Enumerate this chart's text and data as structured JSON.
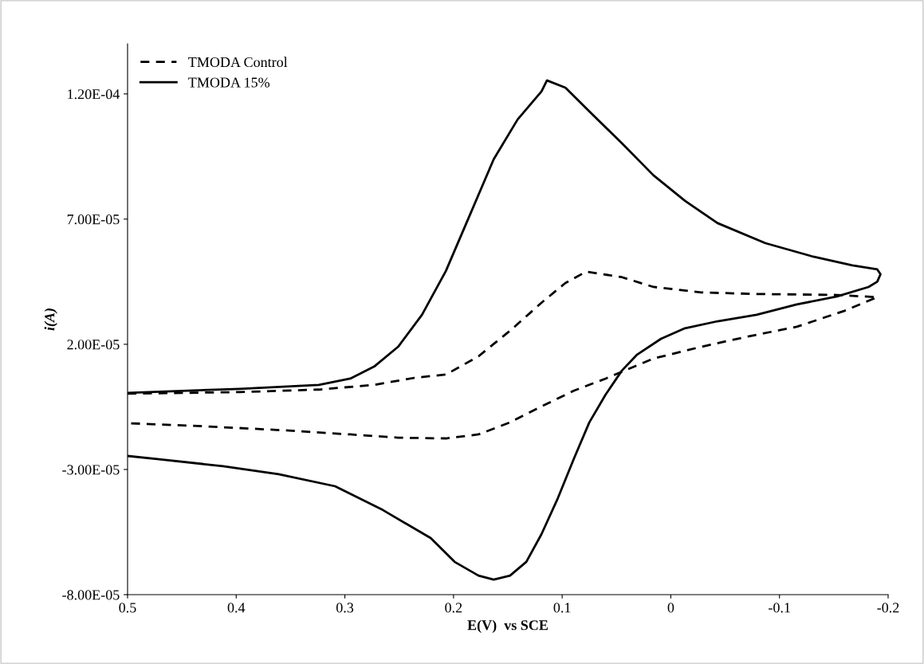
{
  "chart_data": {
    "type": "line",
    "xlabel": "E(V)  vs SCE",
    "ylabel": "i(A)",
    "xlim": [
      0.5,
      -0.2
    ],
    "xticks": [
      0.5,
      0.4,
      0.3,
      0.2,
      0.1,
      0,
      -0.1,
      -0.2
    ],
    "ylim": [
      -8e-05,
      0.00014
    ],
    "yticks": [
      {
        "value": -8e-05,
        "label": "-8.00E-05"
      },
      {
        "value": -3e-05,
        "label": "-3.00E-05"
      },
      {
        "value": 2e-05,
        "label": "2.00E-05"
      },
      {
        "value": 7e-05,
        "label": "7.00E-05"
      },
      {
        "value": 0.00012,
        "label": "1.20E-04"
      }
    ],
    "grid": false,
    "legend": "top left",
    "marker": "none",
    "series": [
      {
        "name": "TMODA Control",
        "color": "#000000",
        "line_style": "dashed",
        "x": [
          0.5,
          0.397,
          0.324,
          0.273,
          0.236,
          0.207,
          0.177,
          0.148,
          0.119,
          0.097,
          0.078,
          0.045,
          0.016,
          -0.028,
          -0.079,
          -0.153,
          -0.19,
          -0.16,
          -0.116,
          -0.072,
          -0.028,
          0.016,
          0.06,
          0.089,
          0.119,
          0.148,
          0.177,
          0.207,
          0.251,
          0.295,
          0.354,
          0.427,
          0.5
        ],
        "values": [
          3e-07,
          9e-07,
          1.9e-06,
          3.8e-06,
          6.6e-06,
          7.9e-06,
          1.52e-05,
          2.54e-05,
          3.66e-05,
          4.45e-05,
          4.9e-05,
          4.68e-05,
          4.29e-05,
          4.07e-05,
          4.01e-05,
          3.97e-05,
          3.88e-05,
          3.34e-05,
          2.7e-05,
          2.32e-05,
          1.9e-05,
          1.43e-05,
          6.3e-06,
          1.5e-06,
          -4.8e-06,
          -1.12e-05,
          -1.6e-05,
          -1.76e-05,
          -1.73e-05,
          -1.6e-05,
          -1.44e-05,
          -1.28e-05,
          -1.15e-05
        ]
      },
      {
        "name": "TMODA 15%",
        "color": "#000000",
        "line_style": "solid",
        "x": [
          0.5,
          0.397,
          0.324,
          0.295,
          0.273,
          0.251,
          0.229,
          0.207,
          0.185,
          0.163,
          0.141,
          0.119,
          0.114,
          0.097,
          0.075,
          0.045,
          0.016,
          -0.013,
          -0.043,
          -0.087,
          -0.131,
          -0.167,
          -0.19,
          -0.193,
          -0.19,
          -0.182,
          -0.153,
          -0.116,
          -0.079,
          -0.043,
          -0.013,
          0.009,
          0.031,
          0.045,
          0.06,
          0.075,
          0.089,
          0.104,
          0.119,
          0.133,
          0.148,
          0.163,
          0.177,
          0.199,
          0.221,
          0.265,
          0.309,
          0.361,
          0.412,
          0.471,
          0.5
        ],
        "values": [
          6e-07,
          2.2e-06,
          3.8e-06,
          6.3e-06,
          1.11e-05,
          1.9e-05,
          3.18e-05,
          4.93e-05,
          7.16e-05,
          9.39e-05,
          0.0001098,
          0.000121,
          0.0001254,
          0.0001225,
          0.000113,
          0.0001003,
          8.75e-05,
          7.73e-05,
          6.84e-05,
          6.04e-05,
          5.5e-05,
          5.15e-05,
          4.99e-05,
          4.8e-05,
          4.5e-05,
          4.29e-05,
          3.91e-05,
          3.59e-05,
          3.18e-05,
          2.92e-05,
          2.64e-05,
          2.22e-05,
          1.59e-05,
          9.5e-06,
          -1e-07,
          -1.12e-05,
          -2.55e-05,
          -4.15e-05,
          -5.58e-05,
          -6.69e-05,
          -7.24e-05,
          -7.4e-05,
          -7.24e-05,
          -6.69e-05,
          -5.74e-05,
          -4.62e-05,
          -3.67e-05,
          -3.19e-05,
          -2.87e-05,
          -2.59e-05,
          -2.46e-05
        ]
      }
    ]
  }
}
